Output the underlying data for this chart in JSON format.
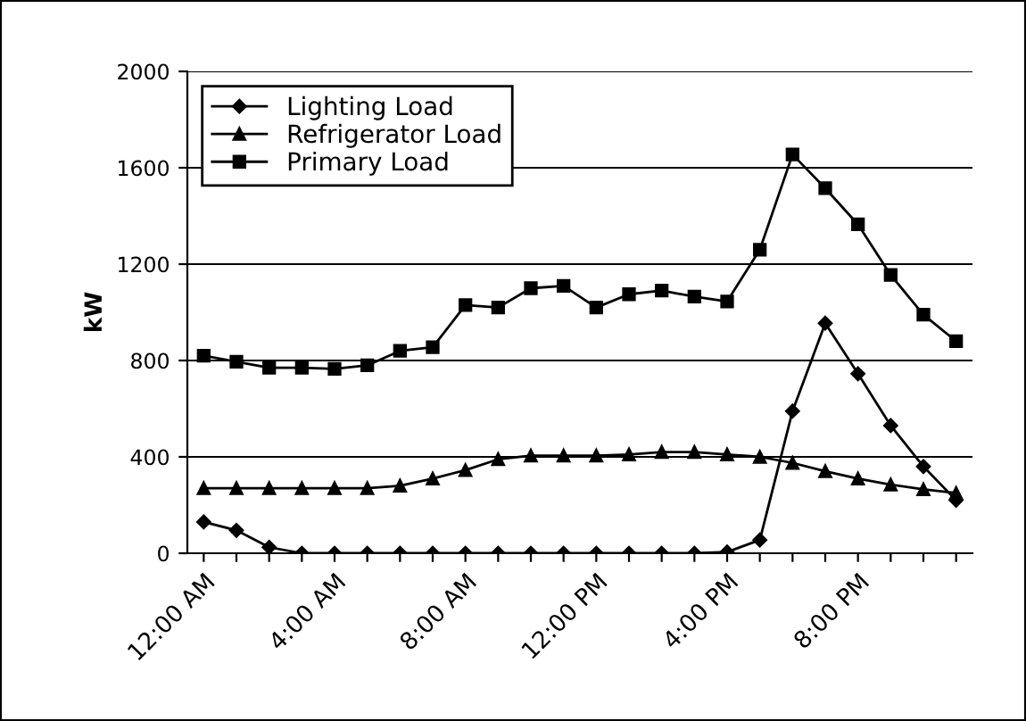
{
  "chart_data": {
    "type": "line",
    "ylabel": "kW",
    "categories": [
      "12:00 AM",
      null,
      null,
      null,
      "4:00 AM",
      null,
      null,
      null,
      "8:00 AM",
      null,
      null,
      null,
      "12:00 PM",
      null,
      null,
      null,
      "4:00 PM",
      null,
      null,
      null,
      "8:00 PM",
      null,
      null,
      null
    ],
    "series": [
      {
        "name": "Lighting Load",
        "color": "#000000",
        "marker": "diamond",
        "values": [
          130,
          95,
          25,
          0,
          0,
          0,
          0,
          0,
          0,
          0,
          0,
          0,
          0,
          0,
          0,
          0,
          5,
          55,
          590,
          955,
          745,
          530,
          360,
          220
        ]
      },
      {
        "name": "Refrigerator Load",
        "color": "#000000",
        "marker": "triangle",
        "values": [
          270,
          270,
          270,
          270,
          270,
          270,
          280,
          310,
          345,
          390,
          405,
          405,
          405,
          410,
          420,
          420,
          410,
          400,
          375,
          340,
          310,
          285,
          265,
          250
        ]
      },
      {
        "name": "Primary Load",
        "color": "#000000",
        "marker": "square",
        "values": [
          820,
          795,
          770,
          770,
          765,
          780,
          840,
          855,
          1030,
          1020,
          1100,
          1110,
          1020,
          1075,
          1090,
          1065,
          1045,
          1260,
          1655,
          1515,
          1365,
          1155,
          990,
          880
        ]
      }
    ],
    "ylim": [
      0,
      2000
    ],
    "yticks": [
      0,
      400,
      800,
      1200,
      1600,
      2000
    ],
    "grid": "y",
    "legend": "top left",
    "line_style": "solid"
  }
}
